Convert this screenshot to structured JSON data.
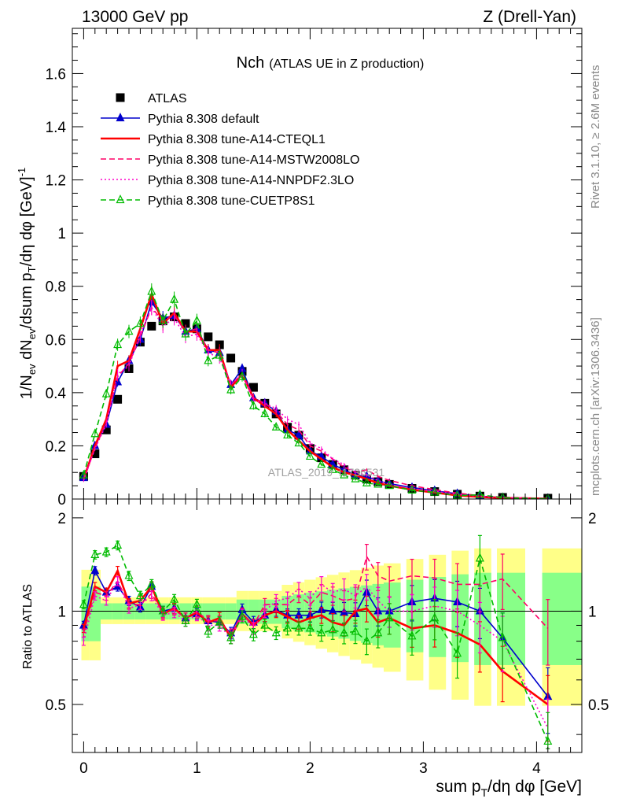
{
  "header": {
    "left": "13000 GeV pp",
    "right": "Z (Drell-Yan)"
  },
  "side_labels": {
    "rivet": "Rivet 3.1.10, ≥ 2.6M events",
    "mcplots": "mcplots.cern.ch [arXiv:1306.3436]"
  },
  "watermark": "ATLAS_2019_I1736531",
  "chart_data": [
    {
      "type": "line",
      "title_main": "Nch",
      "title_sub": "(ATLAS UE in Z production)",
      "xlabel": "sum p_T/dη dφ [GeV]",
      "ylabel": "1/N_ev dN_ev/dsum p_T/dη dφ [GeV]^-1",
      "xlim": [
        -0.1,
        4.4
      ],
      "ylim": [
        0,
        1.77
      ],
      "y_ticks": [
        "0",
        "0.2",
        "0.4",
        "0.6",
        "0.8",
        "1",
        "1.2",
        "1.4",
        "1.6"
      ],
      "x_ticks": [
        "0",
        "1",
        "2",
        "3",
        "4"
      ],
      "legend_placement": "top-left",
      "series": [
        {
          "name": "ATLAS",
          "color": "#000000",
          "marker": "square",
          "x": [
            0.0,
            0.1,
            0.2,
            0.3,
            0.4,
            0.5,
            0.6,
            0.7,
            0.8,
            0.9,
            1.0,
            1.1,
            1.2,
            1.3,
            1.4,
            1.5,
            1.6,
            1.7,
            1.8,
            1.9,
            2.0,
            2.1,
            2.2,
            2.3,
            2.4,
            2.5,
            2.6,
            2.7,
            2.9,
            3.1,
            3.3,
            3.5,
            3.7,
            4.1
          ],
          "y": [
            0.085,
            0.17,
            0.26,
            0.375,
            0.49,
            0.59,
            0.65,
            0.67,
            0.685,
            0.66,
            0.64,
            0.61,
            0.58,
            0.53,
            0.48,
            0.42,
            0.36,
            0.32,
            0.27,
            0.24,
            0.19,
            0.155,
            0.13,
            0.11,
            0.09,
            0.075,
            0.065,
            0.055,
            0.04,
            0.028,
            0.018,
            0.011,
            0.006,
            0.003
          ]
        },
        {
          "name": "Pythia 8.308 default",
          "color": "#0000cc",
          "marker": "triangle-up",
          "dash": "none",
          "x": [
            0.0,
            0.1,
            0.2,
            0.3,
            0.4,
            0.5,
            0.6,
            0.7,
            0.8,
            0.9,
            1.0,
            1.1,
            1.2,
            1.3,
            1.4,
            1.5,
            1.6,
            1.7,
            1.8,
            1.9,
            2.0,
            2.1,
            2.2,
            2.3,
            2.4,
            2.5,
            2.6,
            2.7,
            2.9,
            3.1,
            3.3,
            3.5,
            3.7,
            4.1
          ],
          "y": [
            0.08,
            0.2,
            0.28,
            0.44,
            0.52,
            0.6,
            0.74,
            0.68,
            0.69,
            0.63,
            0.64,
            0.56,
            0.55,
            0.43,
            0.49,
            0.38,
            0.36,
            0.33,
            0.26,
            0.24,
            0.18,
            0.16,
            0.13,
            0.11,
            0.09,
            0.085,
            0.068,
            0.058,
            0.043,
            0.031,
            0.02,
            0.011,
            0.005,
            0.0016
          ]
        },
        {
          "name": "Pythia 8.308 tune-A14-CTEQL1",
          "color": "#ff0000",
          "dash": "solid-thick",
          "x": [
            0.0,
            0.1,
            0.2,
            0.3,
            0.4,
            0.5,
            0.6,
            0.7,
            0.8,
            0.9,
            1.0,
            1.1,
            1.2,
            1.3,
            1.4,
            1.5,
            1.6,
            1.7,
            1.8,
            1.9,
            2.0,
            2.1,
            2.2,
            2.3,
            2.4,
            2.5,
            2.6,
            2.7,
            2.9,
            3.1,
            3.3,
            3.5,
            3.7,
            4.1
          ],
          "y": [
            0.075,
            0.2,
            0.3,
            0.5,
            0.52,
            0.64,
            0.77,
            0.66,
            0.7,
            0.63,
            0.63,
            0.56,
            0.56,
            0.42,
            0.47,
            0.38,
            0.35,
            0.32,
            0.26,
            0.22,
            0.18,
            0.15,
            0.12,
            0.1,
            0.09,
            0.075,
            0.06,
            0.05,
            0.035,
            0.024,
            0.014,
            0.008,
            0.004,
            0.0015
          ]
        },
        {
          "name": "Pythia 8.308 tune-A14-MSTW2008LO",
          "color": "#ff0066",
          "dash": "dashed",
          "x": [
            0.0,
            0.1,
            0.2,
            0.3,
            0.4,
            0.5,
            0.6,
            0.7,
            0.8,
            0.9,
            1.0,
            1.1,
            1.2,
            1.3,
            1.4,
            1.5,
            1.6,
            1.7,
            1.8,
            1.9,
            2.0,
            2.1,
            2.2,
            2.3,
            2.4,
            2.5,
            2.6,
            2.7,
            2.9,
            3.1,
            3.3,
            3.5,
            3.7,
            4.1
          ],
          "y": [
            0.075,
            0.19,
            0.29,
            0.46,
            0.51,
            0.61,
            0.72,
            0.67,
            0.69,
            0.63,
            0.64,
            0.56,
            0.55,
            0.43,
            0.47,
            0.38,
            0.36,
            0.33,
            0.28,
            0.26,
            0.2,
            0.18,
            0.15,
            0.12,
            0.1,
            0.11,
            0.085,
            0.07,
            0.05,
            0.035,
            0.022,
            0.013,
            0.007,
            0.002
          ]
        },
        {
          "name": "Pythia 8.308 tune-A14-NNPDF2.3LO",
          "color": "#ff00cc",
          "dash": "dotted",
          "x": [
            0.0,
            0.1,
            0.2,
            0.3,
            0.4,
            0.5,
            0.6,
            0.7,
            0.8,
            0.9,
            1.0,
            1.1,
            1.2,
            1.3,
            1.4,
            1.5,
            1.6,
            1.7,
            1.8,
            1.9,
            2.0,
            2.1,
            2.2,
            2.3,
            2.4,
            2.5,
            2.6,
            2.7,
            2.9,
            3.1,
            3.3,
            3.5,
            3.7,
            4.1
          ],
          "y": [
            0.07,
            0.19,
            0.28,
            0.47,
            0.5,
            0.62,
            0.72,
            0.65,
            0.68,
            0.61,
            0.62,
            0.55,
            0.53,
            0.43,
            0.47,
            0.37,
            0.36,
            0.34,
            0.3,
            0.28,
            0.21,
            0.19,
            0.15,
            0.13,
            0.1,
            0.09,
            0.07,
            0.055,
            0.04,
            0.029,
            0.018,
            0.01,
            0.005,
            0.0012
          ]
        },
        {
          "name": "Pythia 8.308 tune-CUETP8S1",
          "color": "#00bb00",
          "marker": "triangle-up-open",
          "dash": "dashed",
          "x": [
            0.0,
            0.1,
            0.2,
            0.3,
            0.4,
            0.5,
            0.6,
            0.7,
            0.8,
            0.9,
            1.0,
            1.1,
            1.2,
            1.3,
            1.4,
            1.5,
            1.6,
            1.7,
            1.8,
            1.9,
            2.0,
            2.1,
            2.2,
            2.3,
            2.4,
            2.5,
            2.6,
            2.7,
            2.9,
            3.1,
            3.3,
            3.5,
            3.7,
            4.1
          ],
          "y": [
            0.09,
            0.245,
            0.395,
            0.58,
            0.63,
            0.66,
            0.78,
            0.67,
            0.75,
            0.62,
            0.67,
            0.52,
            0.54,
            0.41,
            0.46,
            0.35,
            0.32,
            0.27,
            0.24,
            0.21,
            0.16,
            0.13,
            0.11,
            0.09,
            0.075,
            0.06,
            0.055,
            0.05,
            0.033,
            0.025,
            0.013,
            0.016,
            0.005,
            0.001
          ]
        }
      ]
    },
    {
      "type": "line",
      "ylabel": "Ratio to ATLAS",
      "ylim": [
        0.35,
        2.3
      ],
      "y_ticks": [
        "0.5",
        "1",
        "2"
      ],
      "reference_line": 1,
      "bands": {
        "inner_color": "#88ff88",
        "outer_color": "#ffff88"
      },
      "series": [
        {
          "name": "Pythia 8.308 default",
          "color": "#0000cc",
          "x": [
            0.0,
            0.1,
            0.2,
            0.3,
            0.4,
            0.5,
            0.6,
            0.7,
            0.8,
            0.9,
            1.0,
            1.1,
            1.2,
            1.3,
            1.4,
            1.5,
            1.6,
            1.7,
            1.8,
            1.9,
            2.0,
            2.1,
            2.2,
            2.3,
            2.4,
            2.5,
            2.6,
            2.7,
            2.9,
            3.1,
            3.3,
            3.5,
            3.7,
            4.1
          ],
          "y": [
            0.9,
            1.35,
            1.15,
            1.2,
            1.08,
            1.03,
            1.2,
            1.0,
            1.02,
            0.95,
            0.98,
            0.93,
            0.92,
            0.85,
            1.01,
            0.92,
            0.97,
            1.01,
            0.97,
            0.97,
            0.97,
            1.01,
            1.0,
            0.99,
            0.98,
            1.15,
            1.0,
            1.0,
            1.07,
            1.1,
            1.07,
            1.0,
            0.82,
            0.53
          ]
        },
        {
          "name": "Pythia 8.308 tune-A14-CTEQL1",
          "color": "#ff0000",
          "x": [
            0.0,
            0.1,
            0.2,
            0.3,
            0.4,
            0.5,
            0.6,
            0.7,
            0.8,
            0.9,
            1.0,
            1.1,
            1.2,
            1.3,
            1.4,
            1.5,
            1.6,
            1.7,
            1.8,
            1.9,
            2.0,
            2.1,
            2.2,
            2.3,
            2.4,
            2.5,
            2.6,
            2.7,
            2.9,
            3.1,
            3.3,
            3.5,
            3.7,
            4.1
          ],
          "y": [
            0.88,
            1.2,
            1.15,
            1.35,
            1.06,
            1.08,
            1.2,
            0.98,
            1.02,
            0.95,
            0.99,
            0.92,
            0.95,
            0.82,
            0.98,
            0.9,
            0.97,
            1.0,
            0.96,
            0.92,
            0.95,
            0.97,
            0.92,
            0.9,
            1.0,
            1.02,
            0.92,
            0.95,
            0.88,
            0.9,
            0.85,
            0.78,
            0.64,
            0.5
          ]
        },
        {
          "name": "Pythia 8.308 tune-A14-MSTW2008LO",
          "color": "#ff0066",
          "x": [
            0.0,
            0.1,
            0.2,
            0.3,
            0.4,
            0.5,
            0.6,
            0.7,
            0.8,
            0.9,
            1.0,
            1.1,
            1.2,
            1.3,
            1.4,
            1.5,
            1.6,
            1.7,
            1.8,
            1.9,
            2.0,
            2.1,
            2.2,
            2.3,
            2.4,
            2.5,
            2.6,
            2.7,
            2.9,
            3.1,
            3.3,
            3.5,
            3.7,
            4.1
          ],
          "y": [
            0.85,
            1.15,
            1.12,
            1.25,
            1.05,
            1.05,
            1.14,
            0.99,
            1.01,
            0.95,
            1.0,
            0.93,
            0.93,
            0.84,
            0.98,
            0.9,
            1.05,
            1.05,
            1.05,
            1.12,
            1.05,
            1.15,
            1.12,
            1.08,
            1.1,
            1.5,
            1.3,
            1.25,
            1.3,
            1.28,
            1.22,
            1.22,
            1.27,
            0.88
          ]
        },
        {
          "name": "Pythia 8.308 tune-A14-NNPDF2.3LO",
          "color": "#ff00cc",
          "x": [
            0.0,
            0.1,
            0.2,
            0.3,
            0.4,
            0.5,
            0.6,
            0.7,
            0.8,
            0.9,
            1.0,
            1.1,
            1.2,
            1.3,
            1.4,
            1.5,
            1.6,
            1.7,
            1.8,
            1.9,
            2.0,
            2.1,
            2.2,
            2.3,
            2.4,
            2.5,
            2.6,
            2.7,
            2.9,
            3.1,
            3.3,
            3.5,
            3.7,
            4.1
          ],
          "y": [
            0.8,
            1.12,
            1.08,
            1.25,
            1.02,
            1.05,
            1.12,
            0.97,
            0.99,
            0.93,
            0.97,
            0.9,
            0.9,
            0.82,
            0.97,
            0.88,
            1.0,
            1.08,
            1.1,
            1.18,
            1.1,
            1.22,
            1.15,
            1.18,
            1.12,
            1.2,
            1.08,
            1.0,
            1.0,
            1.04,
            1.0,
            0.9,
            0.8,
            0.42
          ]
        },
        {
          "name": "Pythia 8.308 tune-CUETP8S1",
          "color": "#00bb00",
          "x": [
            0.0,
            0.1,
            0.2,
            0.3,
            0.4,
            0.5,
            0.6,
            0.7,
            0.8,
            0.9,
            1.0,
            1.1,
            1.2,
            1.3,
            1.4,
            1.5,
            1.6,
            1.7,
            1.8,
            1.9,
            2.0,
            2.1,
            2.2,
            2.3,
            2.4,
            2.5,
            2.6,
            2.7,
            2.9,
            3.1,
            3.3,
            3.5,
            3.7,
            4.1
          ],
          "y": [
            1.05,
            1.52,
            1.55,
            1.63,
            1.3,
            1.12,
            1.22,
            1.0,
            1.09,
            0.93,
            1.05,
            0.86,
            0.92,
            0.82,
            0.96,
            0.84,
            0.9,
            0.85,
            0.88,
            0.88,
            0.88,
            0.85,
            0.87,
            0.85,
            0.86,
            0.8,
            0.85,
            0.95,
            0.83,
            0.95,
            0.73,
            1.48,
            0.82,
            0.38
          ]
        }
      ]
    }
  ]
}
